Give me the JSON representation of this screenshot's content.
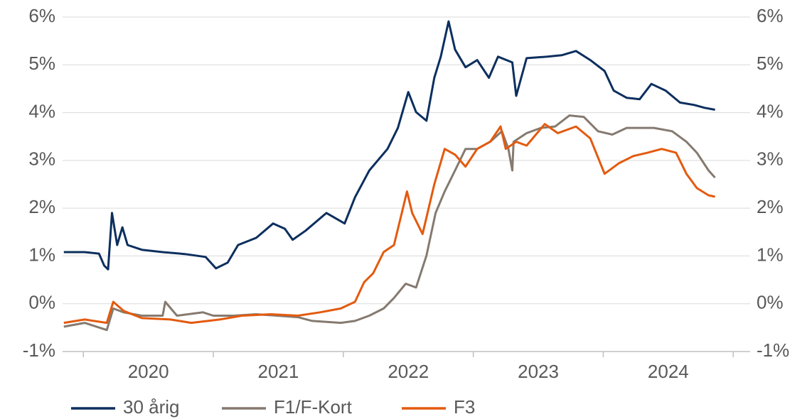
{
  "chart_data": {
    "type": "line",
    "xlim": [
      2019.84,
      2025.13
    ],
    "xticks": [
      {
        "value": 2020.5,
        "label": "2020"
      },
      {
        "value": 2021.5,
        "label": "2021"
      },
      {
        "value": 2022.5,
        "label": "2022"
      },
      {
        "value": 2023.5,
        "label": "2023"
      },
      {
        "value": 2024.5,
        "label": "2024"
      }
    ],
    "ylim": [
      -1,
      6
    ],
    "yticks": [
      {
        "value": -1,
        "label": "-1%"
      },
      {
        "value": 0,
        "label": "0%"
      },
      {
        "value": 1,
        "label": "1%"
      },
      {
        "value": 2,
        "label": "2%"
      },
      {
        "value": 3,
        "label": "3%"
      },
      {
        "value": 4,
        "label": "4%"
      },
      {
        "value": 5,
        "label": "5%"
      },
      {
        "value": 6,
        "label": "6%"
      }
    ],
    "y2lim": [
      -1,
      6
    ],
    "y2ticks": [
      {
        "value": -1,
        "label": "-1%"
      },
      {
        "value": 0,
        "label": "0%"
      },
      {
        "value": 1,
        "label": "1%"
      },
      {
        "value": 2,
        "label": "2%"
      },
      {
        "value": 3,
        "label": "3%"
      },
      {
        "value": 4,
        "label": "4%"
      },
      {
        "value": 5,
        "label": "5%"
      },
      {
        "value": 6,
        "label": "6%"
      }
    ],
    "grid": true,
    "legend": "bottom",
    "series": [
      {
        "name": "30 årig",
        "color": "#0c2f5e",
        "x": [
          2019.85,
          2020.01,
          2020.12,
          2020.16,
          2020.19,
          2020.22,
          2020.26,
          2020.3,
          2020.34,
          2020.45,
          2020.61,
          2020.78,
          2020.94,
          2021.02,
          2021.11,
          2021.19,
          2021.33,
          2021.46,
          2021.55,
          2021.61,
          2021.71,
          2021.87,
          2022.01,
          2022.09,
          2022.2,
          2022.34,
          2022.42,
          2022.5,
          2022.56,
          2022.64,
          2022.7,
          2022.75,
          2022.81,
          2022.86,
          2022.94,
          2023.03,
          2023.12,
          2023.19,
          2023.3,
          2023.33,
          2023.41,
          2023.57,
          2023.68,
          2023.79,
          2023.9,
          2024.01,
          2024.08,
          2024.18,
          2024.28,
          2024.37,
          2024.48,
          2024.59,
          2024.7,
          2024.78,
          2024.86
        ],
        "values": [
          1.08,
          1.08,
          1.05,
          0.8,
          0.72,
          1.9,
          1.23,
          1.6,
          1.23,
          1.13,
          1.08,
          1.04,
          0.98,
          0.74,
          0.86,
          1.23,
          1.38,
          1.68,
          1.57,
          1.34,
          1.53,
          1.9,
          1.68,
          2.23,
          2.79,
          3.24,
          3.68,
          4.43,
          4.01,
          3.83,
          4.73,
          5.17,
          5.91,
          5.32,
          4.95,
          5.1,
          4.73,
          5.17,
          5.05,
          4.35,
          5.14,
          5.17,
          5.2,
          5.29,
          5.1,
          4.87,
          4.46,
          4.31,
          4.28,
          4.6,
          4.46,
          4.21,
          4.16,
          4.1,
          4.06
        ]
      },
      {
        "name": "F1/F-Kort",
        "color": "#857a70",
        "x": [
          2019.85,
          2020.01,
          2020.18,
          2020.23,
          2020.31,
          2020.45,
          2020.61,
          2020.63,
          2020.72,
          2020.92,
          2021.0,
          2021.16,
          2021.33,
          2021.49,
          2021.65,
          2021.76,
          2021.98,
          2022.09,
          2022.2,
          2022.31,
          2022.39,
          2022.48,
          2022.56,
          2022.64,
          2022.71,
          2022.78,
          2022.86,
          2022.94,
          2023.03,
          2023.13,
          2023.22,
          2023.27,
          2023.3,
          2023.31,
          2023.41,
          2023.52,
          2023.63,
          2023.74,
          2023.85,
          2023.96,
          2024.07,
          2024.18,
          2024.39,
          2024.53,
          2024.64,
          2024.72,
          2024.81,
          2024.86
        ],
        "values": [
          -0.48,
          -0.4,
          -0.55,
          -0.1,
          -0.18,
          -0.25,
          -0.25,
          0.04,
          -0.25,
          -0.18,
          -0.25,
          -0.25,
          -0.22,
          -0.25,
          -0.28,
          -0.36,
          -0.4,
          -0.36,
          -0.25,
          -0.1,
          0.12,
          0.42,
          0.34,
          1.01,
          1.9,
          2.35,
          2.79,
          3.24,
          3.24,
          3.39,
          3.61,
          3.24,
          2.79,
          3.39,
          3.57,
          3.68,
          3.71,
          3.94,
          3.91,
          3.61,
          3.54,
          3.68,
          3.68,
          3.61,
          3.39,
          3.16,
          2.79,
          2.64
        ]
      },
      {
        "name": "F3",
        "color": "#e35a0f",
        "x": [
          2019.85,
          2020.01,
          2020.18,
          2020.23,
          2020.31,
          2020.45,
          2020.67,
          2020.83,
          2021.05,
          2021.22,
          2021.44,
          2021.65,
          2021.82,
          2021.98,
          2022.09,
          2022.16,
          2022.23,
          2022.31,
          2022.39,
          2022.45,
          2022.49,
          2022.53,
          2022.61,
          2022.7,
          2022.78,
          2022.86,
          2022.94,
          2023.03,
          2023.13,
          2023.21,
          2023.25,
          2023.33,
          2023.41,
          2023.55,
          2023.65,
          2023.79,
          2023.9,
          2024.01,
          2024.12,
          2024.23,
          2024.34,
          2024.45,
          2024.56,
          2024.64,
          2024.72,
          2024.81,
          2024.86
        ],
        "values": [
          -0.4,
          -0.33,
          -0.4,
          0.04,
          -0.15,
          -0.3,
          -0.33,
          -0.4,
          -0.33,
          -0.25,
          -0.22,
          -0.25,
          -0.18,
          -0.1,
          0.04,
          0.45,
          0.64,
          1.08,
          1.23,
          1.9,
          2.35,
          1.9,
          1.46,
          2.5,
          3.24,
          3.12,
          2.87,
          3.24,
          3.39,
          3.71,
          3.24,
          3.39,
          3.31,
          3.76,
          3.57,
          3.71,
          3.46,
          2.72,
          2.94,
          3.09,
          3.16,
          3.24,
          3.16,
          2.72,
          2.42,
          2.27,
          2.24
        ]
      }
    ]
  }
}
